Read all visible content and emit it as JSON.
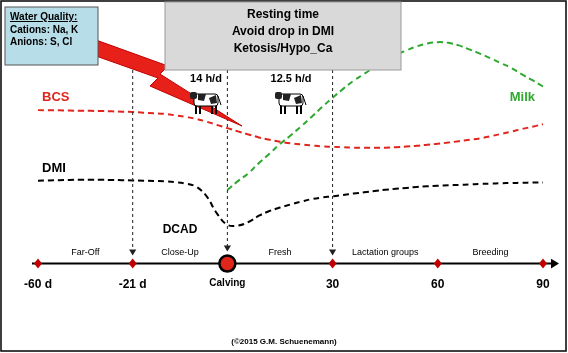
{
  "water_quality": {
    "title": "Water Quality:",
    "lines": [
      "Cations: Na, K",
      "Anions: S, Cl"
    ]
  },
  "header": {
    "lines": [
      "Resting time",
      "Avoid drop in DMI",
      "Ketosis/Hypo_Ca"
    ]
  },
  "resting": [
    {
      "label": "14 h/d"
    },
    {
      "label": "12.5 h/d"
    }
  ],
  "timeline": {
    "phases": [
      "Far-Off",
      "Close-Up",
      "Fresh",
      "Lactation groups",
      "Breeding"
    ],
    "arrows_at": [
      "-21 d",
      "Calving",
      "30"
    ],
    "highlight": "Calving",
    "annotation": {
      "text": "DCAD",
      "phase": "Close-Up"
    }
  },
  "credit": "(©2015 G.M. Schuenemann)",
  "chart_data": {
    "type": "line",
    "categories": [
      "-60 d",
      null,
      null,
      null,
      null,
      null,
      null,
      null,
      null,
      "-21 d",
      null,
      null,
      null,
      null,
      null,
      null,
      null,
      null,
      "Calving",
      null,
      null,
      null,
      null,
      null,
      null,
      null,
      null,
      null,
      "30",
      null,
      null,
      null,
      null,
      null,
      null,
      null,
      null,
      null,
      "60",
      null,
      null,
      null,
      null,
      null,
      null,
      null,
      null,
      null,
      "90"
    ],
    "ylim": [
      0,
      100
    ],
    "grid": false,
    "tick_labels": "x",
    "series": [
      {
        "name": "BCS",
        "color": "#e0251b",
        "line_style": "dashed",
        "marker": "none",
        "values": [
          65.7,
          65.6,
          65.6,
          65.5,
          65.4,
          65.4,
          65.3,
          65.2,
          65.0,
          64.9,
          64.6,
          64.4,
          64.1,
          63.5,
          62.8,
          62.0,
          60.8,
          59.4,
          58.0,
          56.6,
          55.3,
          54.0,
          53.0,
          52.2,
          51.5,
          51.0,
          50.6,
          50.2,
          50.0,
          49.8,
          49.6,
          49.6,
          49.6,
          49.6,
          49.8,
          50.1,
          50.4,
          50.9,
          51.3,
          51.8,
          52.4,
          53.0,
          53.6,
          54.5,
          55.5,
          56.5,
          57.6,
          58.6,
          59.7
        ]
      },
      {
        "name": "DMI",
        "color": "#000000",
        "line_style": "dashed",
        "marker": "none",
        "values": [
          35.5,
          35.6,
          35.7,
          35.8,
          35.9,
          35.9,
          35.9,
          35.8,
          35.7,
          35.6,
          35.5,
          35.4,
          35.2,
          34.9,
          34.3,
          33.0,
          29.0,
          21.5,
          16.6,
          16.3,
          17.8,
          20.5,
          22.5,
          24.0,
          25.3,
          26.5,
          27.6,
          28.3,
          28.8,
          29.4,
          30.0,
          30.5,
          31.1,
          31.6,
          32.0,
          32.4,
          32.8,
          33.1,
          33.3,
          33.5,
          33.7,
          33.9,
          34.1,
          34.2,
          34.4,
          34.5,
          34.6,
          34.7,
          34.7
        ]
      },
      {
        "name": "Milk",
        "color": "#2ea82e",
        "line_style": "dashed",
        "marker": "none",
        "values": [
          null,
          null,
          null,
          null,
          null,
          null,
          null,
          null,
          null,
          null,
          null,
          null,
          null,
          null,
          null,
          null,
          null,
          null,
          31.5,
          35.3,
          38.7,
          43.1,
          47.0,
          51.2,
          54.8,
          58.7,
          62.8,
          67.0,
          71.0,
          74.8,
          78.3,
          81.2,
          84.3,
          86.9,
          89.4,
          91.2,
          93.0,
          94.2,
          94.8,
          94.5,
          93.4,
          91.7,
          89.9,
          87.9,
          85.8,
          83.7,
          81.0,
          78.5,
          75.8
        ]
      }
    ]
  }
}
